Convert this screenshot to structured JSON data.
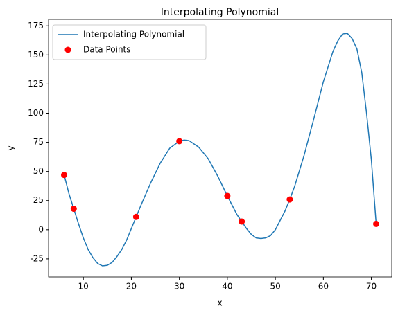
{
  "chart_data": {
    "type": "line",
    "title": "Interpolating Polynomial",
    "xlabel": "x",
    "ylabel": "y",
    "xlim": [
      2.75,
      74.25
    ],
    "ylim": [
      -40.5,
      180.5
    ],
    "xticks": [
      10,
      20,
      30,
      40,
      50,
      60,
      70
    ],
    "yticks": [
      -25,
      0,
      25,
      50,
      75,
      100,
      125,
      150,
      175
    ],
    "legend": "upper left",
    "series": [
      {
        "name": "Interpolating Polynomial",
        "type": "line",
        "color": "#1f77b4",
        "x": [
          6,
          7,
          8,
          9,
          10,
          11,
          12,
          13,
          14,
          15,
          16,
          17,
          18,
          19,
          20,
          21,
          22,
          24,
          26,
          28,
          30,
          31,
          32,
          34,
          36,
          38,
          40,
          42,
          43,
          44,
          45,
          46,
          47,
          48,
          49,
          50,
          52,
          53,
          54,
          56,
          58,
          60,
          62,
          63,
          64,
          65,
          66,
          67,
          68,
          69,
          70,
          71
        ],
        "values": [
          47,
          31,
          18,
          5,
          -7,
          -17,
          -24,
          -29,
          -31,
          -30.5,
          -28,
          -23,
          -17,
          -9,
          1,
          11,
          21,
          40,
          57,
          70,
          76,
          77,
          76.5,
          71,
          61,
          46,
          29,
          13,
          7,
          1,
          -4,
          -7,
          -7.5,
          -7,
          -5,
          0,
          16,
          26,
          37,
          64,
          95,
          127,
          153,
          162,
          168,
          168.5,
          164,
          155,
          135,
          100,
          60,
          5
        ]
      },
      {
        "name": "Data Points",
        "type": "scatter",
        "color": "#ff0000",
        "x": [
          6,
          8,
          21,
          30,
          40,
          43,
          53,
          71
        ],
        "values": [
          47,
          18,
          11,
          76,
          29,
          7,
          26,
          5
        ]
      }
    ]
  }
}
